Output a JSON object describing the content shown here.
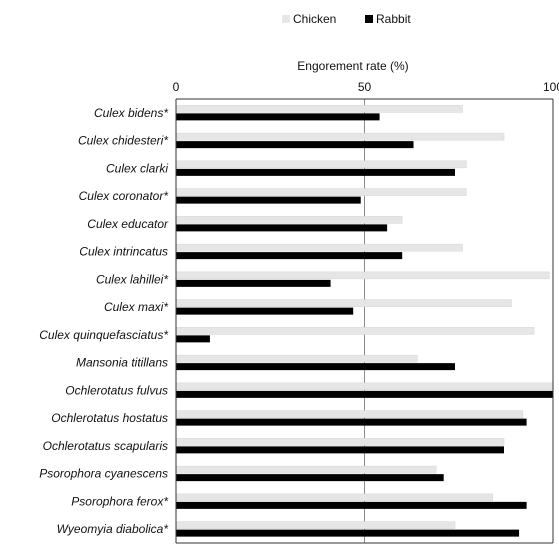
{
  "chart_data": {
    "type": "bar",
    "orientation": "horizontal",
    "xlabel": "Engorement rate (%)",
    "xlim": [
      0,
      100
    ],
    "xticks": [
      0,
      50,
      100
    ],
    "legend_position": "top",
    "grid": true,
    "categories": [
      "Culex bidens*",
      "Culex chidesteri*",
      "Culex clarki",
      "Culex coronator*",
      "Culex educator",
      "Culex intrincatus",
      "Culex lahillei*",
      "Culex maxi*",
      "Culex quinquefasciatus*",
      "Mansonia titillans",
      "Ochlerotatus fulvus",
      "Ochlerotatus hostatus",
      "Ochlerotatus scapularis",
      "Psorophora cyanescens",
      "Psorophora ferox*",
      "Wyeomyia diabolica*"
    ],
    "series": [
      {
        "name": "Chicken",
        "color": "#e6e6e6",
        "values": [
          76,
          87,
          77,
          77,
          60,
          76,
          99,
          89,
          95,
          64,
          100,
          92,
          87,
          69,
          84,
          74
        ]
      },
      {
        "name": "Rabbit",
        "color": "#000000",
        "values": [
          54,
          63,
          74,
          49,
          56,
          60,
          41,
          47,
          9,
          74,
          100,
          93,
          87,
          71,
          93,
          91
        ]
      }
    ]
  }
}
